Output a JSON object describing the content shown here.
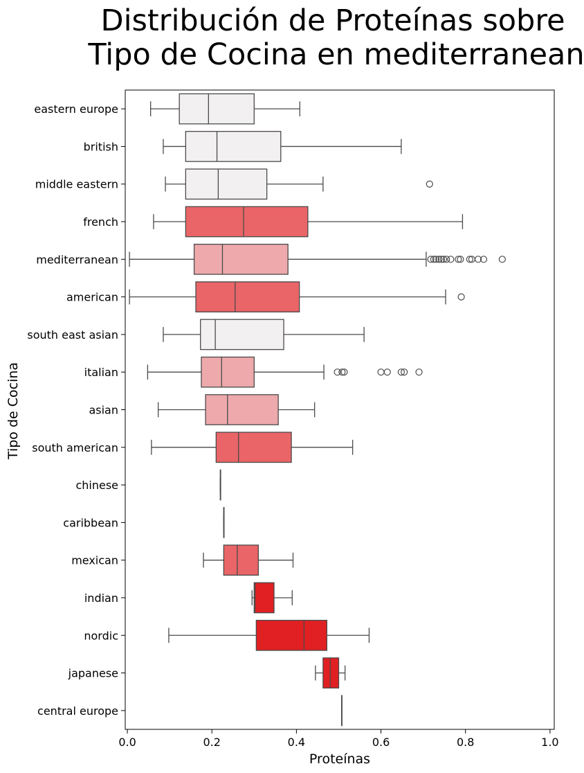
{
  "chart_data": {
    "type": "boxplot",
    "orientation": "horizontal",
    "title": [
      "Distribución de Proteínas sobre",
      "Tipo de Cocina en mediterranean"
    ],
    "xlabel": "Proteínas",
    "ylabel": "Tipo de Cocina",
    "xlim": [
      -0.005,
      1.01
    ],
    "xticks": [
      0.0,
      0.2,
      0.4,
      0.6,
      0.8,
      1.0
    ],
    "xtick_labels": [
      "0.0",
      "0.2",
      "0.4",
      "0.6",
      "0.8",
      "1.0"
    ],
    "grid": false,
    "colors": {
      "light": "#F2F0F1",
      "pink": "#EDA9AB",
      "salmon": "#E96567",
      "red": "#E02022",
      "line": "#4a4a4a"
    },
    "categories": [
      {
        "name": "eastern europe",
        "color": "light",
        "whisker_low": 0.055,
        "q1": 0.123,
        "median": 0.192,
        "q3": 0.3,
        "whisker_high": 0.408,
        "outliers": []
      },
      {
        "name": "british",
        "color": "light",
        "whisker_low": 0.085,
        "q1": 0.138,
        "median": 0.212,
        "q3": 0.363,
        "whisker_high": 0.648,
        "outliers": []
      },
      {
        "name": "middle eastern",
        "color": "light",
        "whisker_low": 0.09,
        "q1": 0.138,
        "median": 0.215,
        "q3": 0.33,
        "whisker_high": 0.463,
        "outliers": [
          0.715
        ]
      },
      {
        "name": "french",
        "color": "salmon",
        "whisker_low": 0.062,
        "q1": 0.138,
        "median": 0.275,
        "q3": 0.427,
        "whisker_high": 0.793,
        "outliers": []
      },
      {
        "name": "mediterranean",
        "color": "pink",
        "whisker_low": 0.005,
        "q1": 0.158,
        "median": 0.225,
        "q3": 0.38,
        "whisker_high": 0.707,
        "outliers": [
          0.718,
          0.725,
          0.73,
          0.737,
          0.743,
          0.748,
          0.755,
          0.765,
          0.783,
          0.788,
          0.81,
          0.815,
          0.83,
          0.843,
          0.887
        ]
      },
      {
        "name": "american",
        "color": "salmon",
        "whisker_low": 0.005,
        "q1": 0.162,
        "median": 0.255,
        "q3": 0.407,
        "whisker_high": 0.753,
        "outliers": [
          0.79
        ]
      },
      {
        "name": "south east asian",
        "color": "light",
        "whisker_low": 0.085,
        "q1": 0.173,
        "median": 0.208,
        "q3": 0.37,
        "whisker_high": 0.56,
        "outliers": []
      },
      {
        "name": "italian",
        "color": "pink",
        "whisker_low": 0.048,
        "q1": 0.175,
        "median": 0.223,
        "q3": 0.3,
        "whisker_high": 0.465,
        "outliers": [
          0.497,
          0.508,
          0.513,
          0.6,
          0.615,
          0.648,
          0.655,
          0.69
        ]
      },
      {
        "name": "asian",
        "color": "pink",
        "whisker_low": 0.073,
        "q1": 0.185,
        "median": 0.237,
        "q3": 0.357,
        "whisker_high": 0.443,
        "outliers": []
      },
      {
        "name": "south american",
        "color": "salmon",
        "whisker_low": 0.057,
        "q1": 0.21,
        "median": 0.263,
        "q3": 0.388,
        "whisker_high": 0.533,
        "outliers": []
      },
      {
        "name": "chinese",
        "color": "light",
        "whisker_low": 0.22,
        "q1": 0.22,
        "median": 0.22,
        "q3": 0.22,
        "whisker_high": 0.22,
        "outliers": []
      },
      {
        "name": "caribbean",
        "color": "light",
        "whisker_low": 0.228,
        "q1": 0.228,
        "median": 0.228,
        "q3": 0.228,
        "whisker_high": 0.228,
        "outliers": []
      },
      {
        "name": "mexican",
        "color": "salmon",
        "whisker_low": 0.18,
        "q1": 0.228,
        "median": 0.26,
        "q3": 0.31,
        "whisker_high": 0.392,
        "outliers": []
      },
      {
        "name": "indian",
        "color": "red",
        "whisker_low": 0.295,
        "q1": 0.3,
        "median": 0.302,
        "q3": 0.347,
        "whisker_high": 0.39,
        "outliers": []
      },
      {
        "name": "nordic",
        "color": "red",
        "whisker_low": 0.098,
        "q1": 0.305,
        "median": 0.418,
        "q3": 0.472,
        "whisker_high": 0.572,
        "outliers": []
      },
      {
        "name": "japanese",
        "color": "red",
        "whisker_low": 0.445,
        "q1": 0.463,
        "median": 0.48,
        "q3": 0.5,
        "whisker_high": 0.515,
        "outliers": []
      },
      {
        "name": "central europe",
        "color": "light",
        "whisker_low": 0.507,
        "q1": 0.507,
        "median": 0.507,
        "q3": 0.507,
        "whisker_high": 0.507,
        "outliers": []
      }
    ]
  }
}
